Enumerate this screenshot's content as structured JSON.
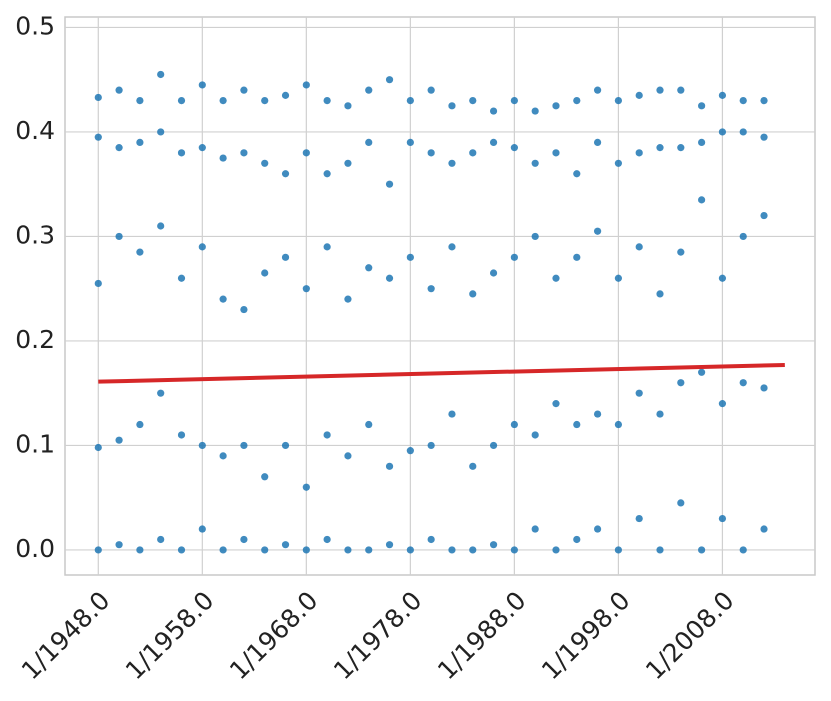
{
  "chart_data": {
    "type": "scatter",
    "x": [
      1948,
      1950,
      1952,
      1954,
      1956,
      1958,
      1960,
      1962,
      1964,
      1966,
      1968,
      1970,
      1972,
      1974,
      1976,
      1978,
      1980,
      1982,
      1984,
      1986,
      1988,
      1990,
      1992,
      1994,
      1996,
      1998,
      2000,
      2002,
      2004,
      2006,
      2008,
      2010,
      2012
    ],
    "series": [
      {
        "color": "#1f77b4",
        "values": [
          0.433,
          0.44,
          0.43,
          0.455,
          0.43,
          0.445,
          0.43,
          0.44,
          0.43,
          0.435,
          0.445,
          0.43,
          0.425,
          0.44,
          0.45,
          0.43,
          0.44,
          0.425,
          0.43,
          0.42,
          0.43,
          0.42,
          0.425,
          0.43,
          0.44,
          0.43,
          0.435,
          0.44,
          0.44,
          0.425,
          0.435,
          0.43,
          0.43
        ]
      },
      {
        "color": "#1f77b4",
        "values": [
          0.395,
          0.385,
          0.39,
          0.4,
          0.38,
          0.385,
          0.375,
          0.38,
          0.37,
          0.36,
          0.38,
          0.36,
          0.37,
          0.39,
          0.35,
          0.39,
          0.38,
          0.37,
          0.38,
          0.39,
          0.385,
          0.37,
          0.38,
          0.36,
          0.39,
          0.37,
          0.38,
          0.385,
          0.385,
          0.39,
          0.4,
          0.4,
          0.395
        ]
      },
      {
        "color": "#1f77b4",
        "values": [
          0.255,
          0.3,
          0.285,
          0.31,
          0.26,
          0.29,
          0.24,
          0.23,
          0.265,
          0.28,
          0.25,
          0.29,
          0.24,
          0.27,
          0.26,
          0.28,
          0.25,
          0.29,
          0.245,
          0.265,
          0.28,
          0.3,
          0.26,
          0.28,
          0.305,
          0.26,
          0.29,
          0.245,
          0.285,
          0.335,
          0.26,
          0.3,
          0.32
        ]
      },
      {
        "color": "#1f77b4",
        "values": [
          0.098,
          0.105,
          0.12,
          0.15,
          0.11,
          0.1,
          0.09,
          0.1,
          0.07,
          0.1,
          0.06,
          0.11,
          0.09,
          0.12,
          0.08,
          0.095,
          0.1,
          0.13,
          0.08,
          0.1,
          0.12,
          0.11,
          0.14,
          0.12,
          0.13,
          0.12,
          0.15,
          0.13,
          0.16,
          0.17,
          0.14,
          0.16,
          0.155
        ]
      },
      {
        "color": "#1f77b4",
        "values": [
          0,
          0.005,
          0,
          0.01,
          0,
          0.02,
          0,
          0.01,
          0,
          0.005,
          0,
          0.01,
          0,
          0,
          0.005,
          0,
          0.01,
          0,
          0,
          0.005,
          0,
          0.02,
          0,
          0.01,
          0.02,
          0,
          0.03,
          0,
          0.045,
          0,
          0.03,
          0,
          0.02
        ]
      }
    ],
    "trend": {
      "x": [
        1948,
        2014
      ],
      "values": [
        0.161,
        0.177
      ],
      "color": "#d62728"
    },
    "xlim": [
      1944.8,
      2016.9
    ],
    "xticks": [
      {
        "value": 1948,
        "label": "1/1948.0"
      },
      {
        "value": 1958,
        "label": "1/1958.0"
      },
      {
        "value": 1968,
        "label": "1/1968.0"
      },
      {
        "value": 1978,
        "label": "1/1978.0"
      },
      {
        "value": 1988,
        "label": "1/1988.0"
      },
      {
        "value": 1998,
        "label": "1/1998.0"
      },
      {
        "value": 2008,
        "label": "1/2008.0"
      }
    ],
    "ylim": [
      -0.024,
      0.51
    ],
    "yticks": [
      {
        "value": 0,
        "label": "0.0"
      },
      0.1,
      0.2,
      0.3,
      0.4,
      0.5
    ],
    "grid": true
  }
}
